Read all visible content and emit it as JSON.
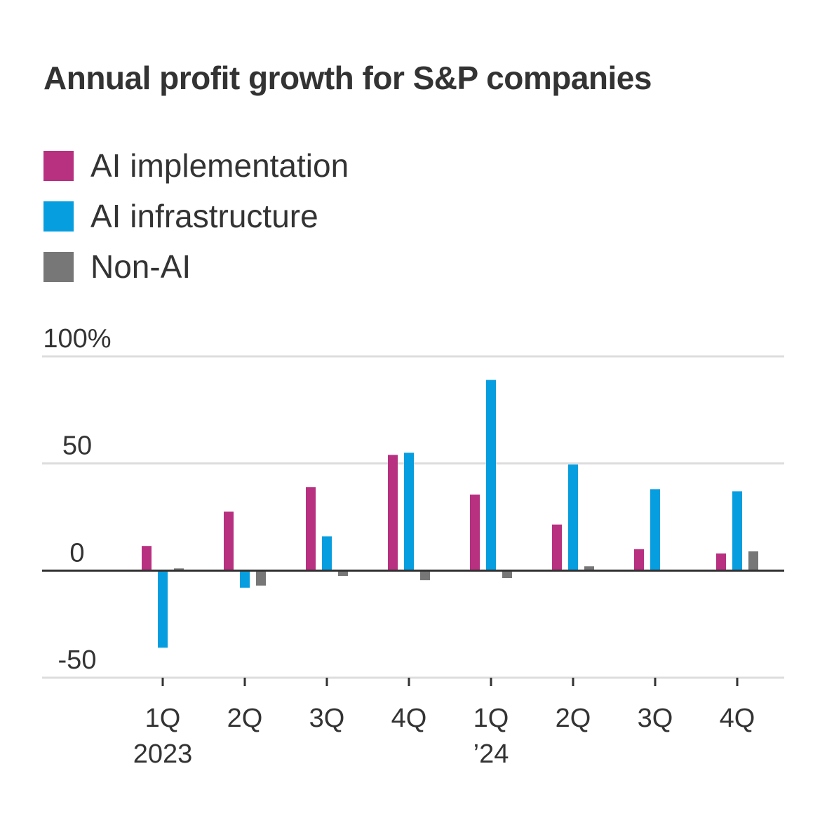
{
  "chart_data": {
    "type": "bar",
    "title": "Annual profit growth for S&P companies",
    "xlabel": "",
    "ylabel": "",
    "ylim": [
      -50,
      100
    ],
    "y_ticks": [
      {
        "value": 100,
        "label": "100%"
      },
      {
        "value": 50,
        "label": "50"
      },
      {
        "value": 0,
        "label": "0"
      },
      {
        "value": -50,
        "label": "-50"
      }
    ],
    "categories": [
      {
        "label": "1Q",
        "sublabel": "2023"
      },
      {
        "label": "2Q",
        "sublabel": ""
      },
      {
        "label": "3Q",
        "sublabel": ""
      },
      {
        "label": "4Q",
        "sublabel": ""
      },
      {
        "label": "1Q",
        "sublabel": "’24"
      },
      {
        "label": "2Q",
        "sublabel": ""
      },
      {
        "label": "3Q",
        "sublabel": ""
      },
      {
        "label": "4Q",
        "sublabel": ""
      }
    ],
    "series": [
      {
        "name": "AI implementation",
        "color": "#b83080",
        "values": [
          11.5,
          27.5,
          39,
          54,
          35.5,
          21.5,
          10,
          8
        ]
      },
      {
        "name": "AI infrastructure",
        "color": "#079ee0",
        "values": [
          -36,
          -8,
          16,
          55,
          89,
          49.5,
          38,
          37
        ]
      },
      {
        "name": "Non-AI",
        "color": "#777777",
        "values": [
          1,
          -7,
          -2.5,
          -4.5,
          -3.5,
          2,
          0,
          9
        ]
      }
    ],
    "grid": true,
    "legend_position": "top-left"
  }
}
